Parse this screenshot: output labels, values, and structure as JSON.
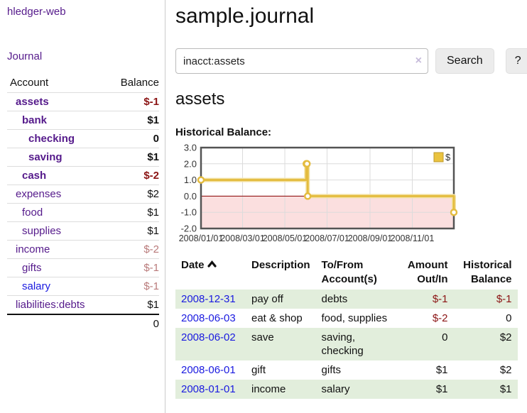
{
  "app": {
    "title": "hledger-web"
  },
  "sidebar": {
    "journal_label": "Journal",
    "accounts_table": {
      "headers": [
        "Account",
        "Balance"
      ],
      "rows": [
        {
          "account": "assets",
          "balance": "$-1"
        },
        {
          "account": "bank",
          "balance": "$1"
        },
        {
          "account": "checking",
          "balance": "0"
        },
        {
          "account": "saving",
          "balance": "$1"
        },
        {
          "account": "cash",
          "balance": "$-2"
        },
        {
          "account": "expenses",
          "balance": "$2"
        },
        {
          "account": "food",
          "balance": "$1"
        },
        {
          "account": "supplies",
          "balance": "$1"
        },
        {
          "account": "income",
          "balance": "$-2"
        },
        {
          "account": "gifts",
          "balance": "$-1"
        },
        {
          "account": "salary",
          "balance": "$-1"
        },
        {
          "account": "liabilities:debts",
          "balance": "$1"
        }
      ],
      "total": "0"
    }
  },
  "main": {
    "title": "sample.journal",
    "search": {
      "value": "inacct:assets",
      "clear_icon": "×",
      "search_button": "Search",
      "help_button": "?"
    },
    "account_heading": "assets",
    "chart_label": "Historical Balance:"
  },
  "chart_data": {
    "type": "line",
    "step": true,
    "title": "Historical Balance",
    "series": [
      {
        "name": "$",
        "points": [
          [
            "2008-01-01",
            1
          ],
          [
            "2008-06-01",
            2
          ],
          [
            "2008-06-02",
            2
          ],
          [
            "2008-06-03",
            0
          ],
          [
            "2008-12-31",
            -1
          ]
        ],
        "color": "#e4bc3f",
        "halo_color": "#f3e2a6",
        "marker_fill": "#ffffff"
      }
    ],
    "x_tick_labels": [
      "2008/01/01",
      "2008/03/01",
      "2008/05/01",
      "2008/07/01",
      "2008/09/01",
      "2008/11/01"
    ],
    "x_tick_days": [
      0,
      60,
      121,
      182,
      244,
      305
    ],
    "x_domain_days": [
      0,
      365
    ],
    "y_ticks": [
      "3.0",
      "2.0",
      "1.0",
      "0.0",
      "-1.0",
      "-2.0"
    ],
    "ylim": [
      -2,
      3
    ],
    "grid": true,
    "legend": {
      "label": "$",
      "position": "top-right",
      "swatch_color": "#eac33f",
      "swatch_border": "#bd9a2e"
    },
    "negative_region_color": "#fbdfdf",
    "zero_line_color": "#8b0000",
    "border_color": "#545454",
    "grid_color": "#dcdcdc"
  },
  "transactions": {
    "headers": {
      "date": "Date",
      "description": "Description",
      "account": "To/From Account(s)",
      "amount": "Amount Out/In",
      "balance": "Historical Balance"
    },
    "rows": [
      {
        "date": "2008-12-31",
        "description": "pay off",
        "accounts": "debts",
        "amount": "$-1",
        "balance": "$-1"
      },
      {
        "date": "2008-06-03",
        "description": "eat & shop",
        "accounts": "food, supplies",
        "amount": "$-2",
        "balance": "0"
      },
      {
        "date": "2008-06-02",
        "description": "save",
        "accounts": "saving, checking",
        "amount": "0",
        "balance": "$2"
      },
      {
        "date": "2008-06-01",
        "description": "gift",
        "accounts": "gifts",
        "amount": "$1",
        "balance": "$2"
      },
      {
        "date": "2008-01-01",
        "description": "income",
        "accounts": "salary",
        "amount": "$1",
        "balance": "$1"
      }
    ]
  }
}
